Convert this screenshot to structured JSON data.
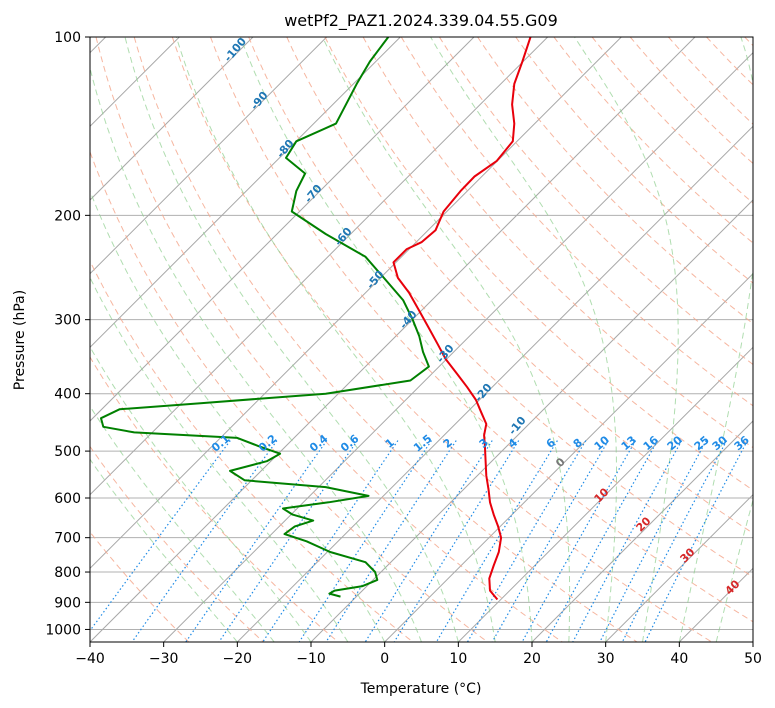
{
  "chart_data": {
    "type": "line",
    "title": "wetPf2_PAZ1.2024.339.04.55.G09",
    "xlabel": "Temperature (°C)",
    "ylabel": "Pressure (hPa)",
    "xlim": [
      -40,
      50
    ],
    "ylim": [
      1050,
      100
    ],
    "y_scale": "log",
    "grid": true,
    "x_ticks": [
      "−40",
      "−30",
      "−20",
      "−10",
      "0",
      "10",
      "20",
      "30",
      "40",
      "50"
    ],
    "x_tick_values": [
      -40,
      -30,
      -20,
      -10,
      0,
      10,
      20,
      30,
      40,
      50
    ],
    "y_ticks": [
      "100",
      "200",
      "300",
      "400",
      "500",
      "600",
      "700",
      "800",
      "900",
      "1000"
    ],
    "y_tick_values": [
      100,
      200,
      300,
      400,
      500,
      600,
      700,
      800,
      900,
      1000
    ],
    "series": [
      {
        "color": "#e8000b",
        "points": [
          [
            19.8,
            100
          ],
          [
            18.7,
            110
          ],
          [
            17.6,
            120
          ],
          [
            17.3,
            130
          ],
          [
            17.6,
            140
          ],
          [
            17.4,
            150
          ],
          [
            15.2,
            162
          ],
          [
            12.2,
            172
          ],
          [
            10.3,
            182
          ],
          [
            8.0,
            197
          ],
          [
            6.9,
            212
          ],
          [
            5.0,
            222
          ],
          [
            3.0,
            228
          ],
          [
            1.2,
            240
          ],
          [
            1.8,
            255
          ],
          [
            3.3,
            270
          ],
          [
            4.7,
            290
          ],
          [
            6.0,
            310
          ],
          [
            7.2,
            330
          ],
          [
            8.3,
            350
          ],
          [
            9.8,
            370
          ],
          [
            11.2,
            390
          ],
          [
            12.4,
            410
          ],
          [
            13.1,
            430
          ],
          [
            13.8,
            450
          ],
          [
            13.5,
            470
          ],
          [
            13.6,
            490
          ],
          [
            13.7,
            520
          ],
          [
            13.8,
            550
          ],
          [
            14.1,
            580
          ],
          [
            14.3,
            610
          ],
          [
            14.8,
            640
          ],
          [
            15.4,
            670
          ],
          [
            15.8,
            700
          ],
          [
            15.5,
            740
          ],
          [
            14.8,
            780
          ],
          [
            14.2,
            820
          ],
          [
            14.3,
            860
          ],
          [
            15.3,
            890
          ]
        ]
      },
      {
        "color": "#008000",
        "points": [
          [
            0.5,
            100
          ],
          [
            -2.0,
            110
          ],
          [
            -3.8,
            120
          ],
          [
            -6.6,
            140
          ],
          [
            -12.0,
            150
          ],
          [
            -13.4,
            160
          ],
          [
            -10.8,
            170
          ],
          [
            -12.0,
            182
          ],
          [
            -12.6,
            197
          ],
          [
            -8.0,
            215
          ],
          [
            -2.6,
            235
          ],
          [
            -0.1,
            255
          ],
          [
            2.5,
            278
          ],
          [
            3.8,
            300
          ],
          [
            4.7,
            320
          ],
          [
            5.2,
            340
          ],
          [
            6.0,
            360
          ],
          [
            3.5,
            380
          ],
          [
            -8.0,
            400
          ],
          [
            -25.0,
            415
          ],
          [
            -36.0,
            425
          ],
          [
            -38.5,
            440
          ],
          [
            -38.2,
            455
          ],
          [
            -34.0,
            465
          ],
          [
            -20.0,
            475
          ],
          [
            -17.2,
            490
          ],
          [
            -14.2,
            505
          ],
          [
            -16.0,
            520
          ],
          [
            -21.0,
            540
          ],
          [
            -19.0,
            560
          ],
          [
            -8.0,
            575
          ],
          [
            -2.2,
            595
          ],
          [
            -7.6,
            610
          ],
          [
            -13.8,
            625
          ],
          [
            -12.5,
            640
          ],
          [
            -9.7,
            655
          ],
          [
            -12.2,
            670
          ],
          [
            -13.6,
            690
          ],
          [
            -10.6,
            710
          ],
          [
            -7.4,
            740
          ],
          [
            -2.6,
            770
          ],
          [
            -1.3,
            800
          ],
          [
            -1.0,
            825
          ],
          [
            -3.0,
            845
          ],
          [
            -6.8,
            860
          ],
          [
            -7.5,
            870
          ],
          [
            -6.0,
            880
          ]
        ]
      }
    ],
    "mixing_ratio_labels": [
      "0.1",
      "0.2",
      "0.4",
      "0.6",
      "1",
      "1.5",
      "2",
      "3",
      "4",
      "6",
      "8",
      "10",
      "13",
      "16",
      "20",
      "25",
      "30",
      "36"
    ],
    "dry_adiabat_labels": [
      "-100",
      "-90",
      "-80",
      "-70",
      "-60",
      "-50",
      "-40",
      "-30",
      "-20",
      "-10"
    ],
    "moist_adiabat_labels": [
      "0",
      "10",
      "20",
      "30",
      "40"
    ]
  }
}
